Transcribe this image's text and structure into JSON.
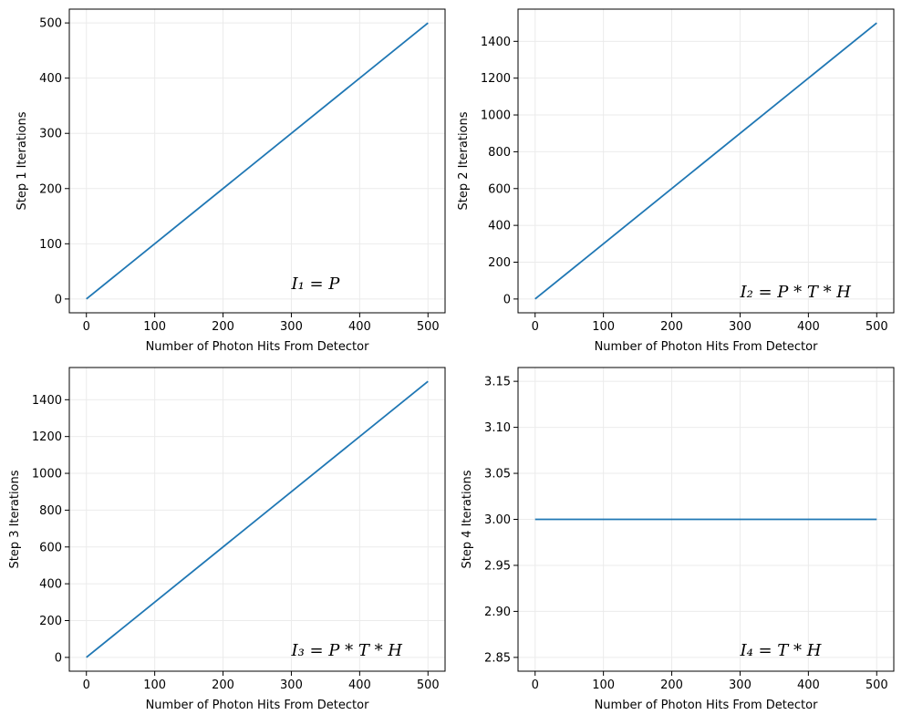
{
  "colors": {
    "series": "#1f77b4",
    "grid": "#ebebeb"
  },
  "chart_data": [
    {
      "type": "line",
      "xlabel": "Number of Photon Hits From Detector",
      "ylabel": "Step 1 Iterations",
      "xlim": [
        -25,
        525
      ],
      "ylim": [
        -25,
        525
      ],
      "xticks": [
        0,
        100,
        200,
        300,
        400,
        500
      ],
      "yticks": [
        0,
        100,
        200,
        300,
        400,
        500
      ],
      "ytick_labels": [
        "0",
        "100",
        "200",
        "300",
        "400",
        "500"
      ],
      "grid": true,
      "annotation": {
        "text": "I₁ = P",
        "x": 300,
        "y": 18
      },
      "series": [
        {
          "x": [
            0,
            500
          ],
          "y": [
            0,
            500
          ]
        }
      ]
    },
    {
      "type": "line",
      "xlabel": "Number of Photon Hits From Detector",
      "ylabel": "Step 2 Iterations",
      "xlim": [
        -25,
        525
      ],
      "ylim": [
        -75,
        1575
      ],
      "xticks": [
        0,
        100,
        200,
        300,
        400,
        500
      ],
      "yticks": [
        0,
        200,
        400,
        600,
        800,
        1000,
        1200,
        1400
      ],
      "ytick_labels": [
        "0",
        "200",
        "400",
        "600",
        "800",
        "1000",
        "1200",
        "1400"
      ],
      "grid": true,
      "annotation": {
        "text": "I₂ = P * T * H",
        "x": 300,
        "y": 10
      },
      "series": [
        {
          "x": [
            0,
            500
          ],
          "y": [
            0,
            1500
          ]
        }
      ]
    },
    {
      "type": "line",
      "xlabel": "Number of Photon Hits From Detector",
      "ylabel": "Step 3 Iterations",
      "xlim": [
        -25,
        525
      ],
      "ylim": [
        -75,
        1575
      ],
      "xticks": [
        0,
        100,
        200,
        300,
        400,
        500
      ],
      "yticks": [
        0,
        200,
        400,
        600,
        800,
        1000,
        1200,
        1400
      ],
      "ytick_labels": [
        "0",
        "200",
        "400",
        "600",
        "800",
        "1000",
        "1200",
        "1400"
      ],
      "grid": true,
      "annotation": {
        "text": "I₃ = P * T * H",
        "x": 300,
        "y": 10
      },
      "series": [
        {
          "x": [
            0,
            500
          ],
          "y": [
            0,
            1500
          ]
        }
      ]
    },
    {
      "type": "line",
      "xlabel": "Number of Photon Hits From Detector",
      "ylabel": "Step 4 Iterations",
      "xlim": [
        -25,
        525
      ],
      "ylim": [
        2.835,
        3.165
      ],
      "xticks": [
        0,
        100,
        200,
        300,
        400,
        500
      ],
      "yticks": [
        2.85,
        2.9,
        2.95,
        3.0,
        3.05,
        3.1,
        3.15
      ],
      "ytick_labels": [
        "2.85",
        "2.90",
        "2.95",
        "3.00",
        "3.05",
        "3.10",
        "3.15"
      ],
      "grid": true,
      "annotation": {
        "text": "I₄ = T * H",
        "x": 300,
        "y": 2.852
      },
      "series": [
        {
          "x": [
            0,
            500
          ],
          "y": [
            3,
            3
          ]
        }
      ]
    }
  ]
}
